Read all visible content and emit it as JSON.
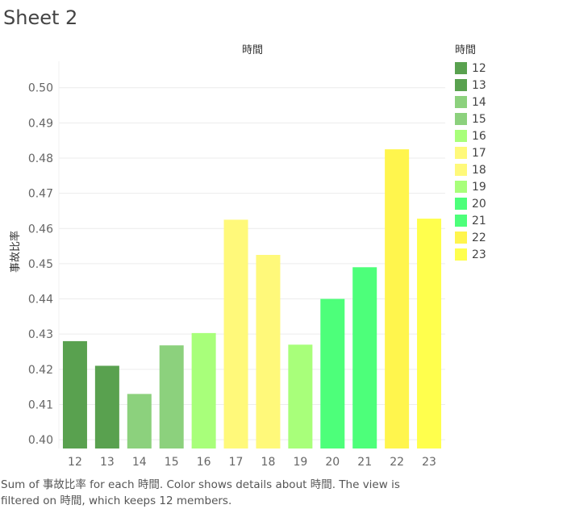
{
  "sheet": {
    "title": "Sheet 2"
  },
  "chart_data": {
    "type": "bar",
    "title": "",
    "xlabel": "時間",
    "ylabel": "事故比率",
    "ylim": [
      0.3975,
      0.5075
    ],
    "yticks": [
      0.4,
      0.41,
      0.42,
      0.43,
      0.44,
      0.45,
      0.46,
      0.47,
      0.48,
      0.49,
      0.5
    ],
    "ytick_labels": [
      "0.40",
      "0.41",
      "0.42",
      "0.43",
      "0.44",
      "0.45",
      "0.46",
      "0.47",
      "0.48",
      "0.49",
      "0.50"
    ],
    "categories": [
      "12",
      "13",
      "14",
      "15",
      "16",
      "17",
      "18",
      "19",
      "20",
      "21",
      "22",
      "23"
    ],
    "values": [
      0.428,
      0.421,
      0.413,
      0.4268,
      0.4303,
      0.4625,
      0.4525,
      0.427,
      0.44,
      0.449,
      0.4825,
      0.4628
    ],
    "colors": [
      "#59A14F",
      "#59A14F",
      "#8CD17D",
      "#8CD17D",
      "#A8FF7A",
      "#FFF97A",
      "#FFF97A",
      "#A8FF7A",
      "#4DFF7A",
      "#4DFF7A",
      "#FFF54D",
      "#FFFF4D"
    ],
    "grid": true,
    "legend": {
      "title": "時間",
      "placement": "right",
      "items": [
        "12",
        "13",
        "14",
        "15",
        "16",
        "17",
        "18",
        "19",
        "20",
        "21",
        "22",
        "23"
      ]
    }
  },
  "caption": "Sum of 事故比率 for each 時間.  Color shows details about 時間. The view is filtered on 時間, which keeps 12 members."
}
